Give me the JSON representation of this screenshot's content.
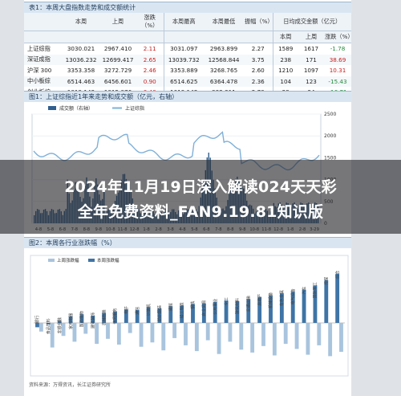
{
  "table1": {
    "title": "表1：本周大盘指数走势和成交额统计",
    "group_headers": [
      "本周",
      "上周",
      "涨跌（%）",
      "本周最高",
      "本周最低",
      "振幅（%）",
      "日均成交金额（亿元）"
    ],
    "sub_headers": [
      "本周",
      "上周",
      "涨跌（%）"
    ],
    "rows": [
      {
        "name": "上证综指",
        "c1": "3030.021",
        "c2": "2967.410",
        "c3": "2.11",
        "c4": "3031.097",
        "c5": "2963.899",
        "c6": "2.27",
        "c7": "1589",
        "c8": "1617",
        "c9": "-1.78"
      },
      {
        "name": "深证成指",
        "c1": "13036.232",
        "c2": "12699.417",
        "c3": "2.65",
        "c4": "13039.732",
        "c5": "12568.844",
        "c6": "3.75",
        "c7": "238",
        "c8": "171",
        "c9": "38.69"
      },
      {
        "name": "沪深 300",
        "c1": "3353.358",
        "c2": "3272.729",
        "c3": "2.46",
        "c4": "3353.889",
        "c5": "3268.765",
        "c6": "2.60",
        "c7": "1210",
        "c8": "1097",
        "c9": "10.31"
      },
      {
        "name": "中小板综",
        "c1": "6514.463",
        "c2": "6456.601",
        "c3": "0.90",
        "c4": "6514.625",
        "c5": "6364.478",
        "c6": "2.36",
        "c7": "104",
        "c8": "123",
        "c9": "-15.43"
      },
      {
        "name": "创业板综",
        "c1": "1019.142",
        "c2": "1015.076",
        "c3": "0.40",
        "c4": "1019.142",
        "c5": "992.311",
        "c6": "2.70",
        "c7": "29",
        "c8": "34",
        "c9": "-16.71"
      }
    ]
  },
  "chart1": {
    "title": "图1：上证综指近1年来走势和成交额（亿元，右轴）",
    "legend": [
      "成交额（右轴）",
      "上证综指"
    ],
    "right_ticks": [
      "2500",
      "2000",
      "1500",
      "1000",
      "500",
      "0"
    ],
    "x_ticks": [
      "4-8",
      "5-8",
      "6-8",
      "7-8",
      "8-8",
      "9-8",
      "10-8",
      "11-8",
      "12-8",
      "1-8",
      "2-8",
      "3-8",
      "4-8",
      "5-8",
      "6-8",
      "7-8",
      "8-8",
      "9-8",
      "10-8",
      "11-8",
      "12-8",
      "1-8",
      "2-8",
      "3-29"
    ],
    "bar_color": "#2f5f8f",
    "line_color": "#7fb0d8"
  },
  "banner": {
    "line1": "2024年11月19日深入解读024天天彩",
    "line2": "全年免费资料_FAN9.19.81知识版"
  },
  "chart2": {
    "title": "图2：本周各行业涨跌幅（%）",
    "legend": [
      "上周涨跌幅",
      "本周涨跌幅"
    ],
    "this_week_color": "#3e74a6",
    "last_week_color": "#a9c4dd",
    "industry_labels": [
      "银行",
      "食品饮料",
      "非银金融",
      "家用电器",
      "医药生物",
      "建筑装饰",
      "农林牧渔",
      "休闲服务",
      "电子",
      "通信",
      "计算机",
      "纺织服装",
      "采掘",
      "轻工制造",
      "钢铁",
      "商业贸易",
      "公用事业",
      "化工",
      "建筑材料",
      "交通运输",
      "房地产",
      "机械设备",
      "有色金属",
      "电气设备",
      "汽车",
      "国防军工",
      "传媒",
      "综合"
    ],
    "this_week": [
      -0.6,
      -0.2,
      0.3,
      0.9,
      1.2,
      1.0,
      1.4,
      1.6,
      1.9,
      1.8,
      2.2,
      2.0,
      2.3,
      2.4,
      2.6,
      2.7,
      2.9,
      3.1,
      3.0,
      3.3,
      3.6,
      3.8,
      4.1,
      4.3,
      4.6,
      5.2,
      5.9,
      6.8
    ],
    "last_week": [
      -1.2,
      -3.4,
      -1.8,
      -2.6,
      -1.5,
      -2.9,
      -2.2,
      -3.0,
      -1.4,
      -3.3,
      -2.7,
      -3.8,
      -2.1,
      -3.1,
      -3.9,
      -2.4,
      -4.3,
      -2.6,
      -3.7,
      -4.1,
      -3.2,
      -4.5,
      -2.9,
      -3.6,
      -4.4,
      -3.1,
      -4.6,
      -4.0
    ]
  },
  "source": "资料来源：万得资讯，长江证券研究所"
}
